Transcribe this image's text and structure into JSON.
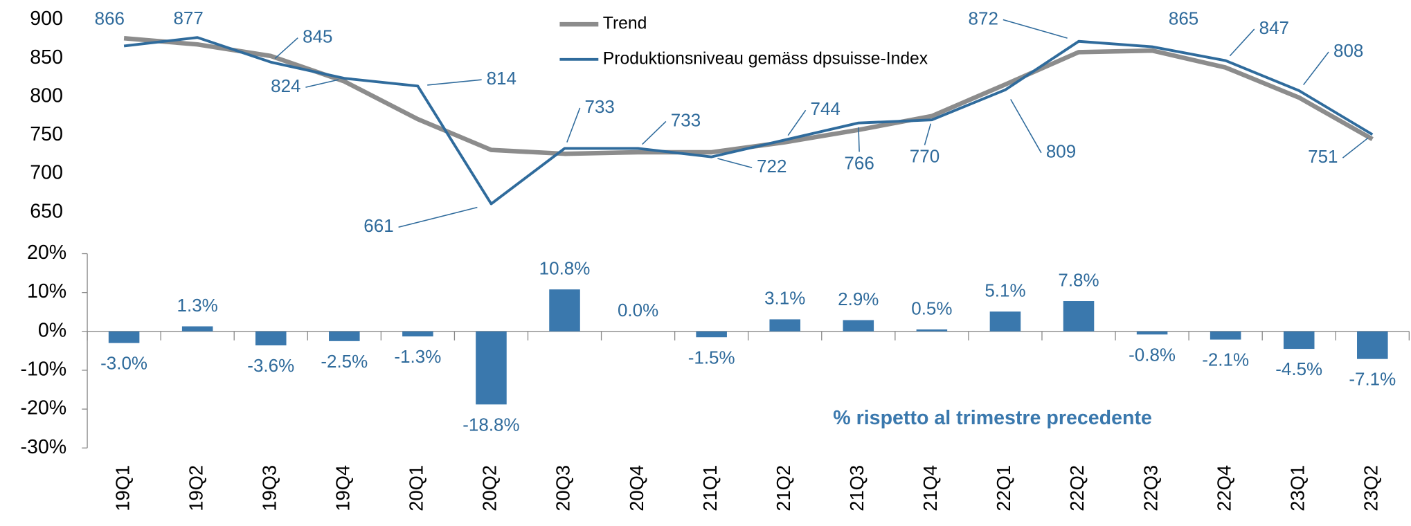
{
  "chart_data": [
    {
      "type": "line",
      "series": [
        {
          "name": "Trend",
          "color": "#8c8c8c",
          "values": [
            876,
            868,
            853,
            820,
            771,
            731,
            726,
            728,
            728,
            741,
            757,
            775,
            816,
            858,
            860,
            838,
            799,
            745
          ]
        },
        {
          "name": "Produktionsniveau gemäss dpsuisse-Index",
          "color": "#2f6b9c",
          "values": [
            866,
            877,
            845,
            824,
            814,
            661,
            733,
            733,
            722,
            744,
            766,
            770,
            809,
            872,
            865,
            847,
            808,
            751
          ],
          "data_labels": true
        }
      ],
      "ylim": [
        620,
        900
      ],
      "yticks": [
        650,
        700,
        750,
        800,
        850,
        900
      ]
    },
    {
      "type": "bar",
      "annotation": "% rispetto al trimestre precedente",
      "categories": [
        "19Q1",
        "19Q2",
        "19Q3",
        "19Q4",
        "20Q1",
        "20Q2",
        "20Q3",
        "20Q4",
        "21Q1",
        "21Q2",
        "21Q3",
        "21Q4",
        "22Q1",
        "22Q2",
        "22Q3",
        "22Q4",
        "23Q1",
        "23Q2"
      ],
      "values": [
        -3.0,
        1.3,
        -3.6,
        -2.5,
        -1.3,
        -18.8,
        10.8,
        0.0,
        -1.5,
        3.1,
        2.9,
        0.5,
        5.1,
        7.8,
        -0.8,
        -2.1,
        -4.5,
        -7.1
      ],
      "value_labels": [
        "-3.0%",
        "1.3%",
        "-3.6%",
        "-2.5%",
        "-1.3%",
        "-18.8%",
        "10.8%",
        "0.0%",
        "-1.5%",
        "3.1%",
        "2.9%",
        "0.5%",
        "5.1%",
        "7.8%",
        "-0.8%",
        "-2.1%",
        "-4.5%",
        "-7.1%"
      ],
      "color": "#3a78ad",
      "ylim": [
        -30,
        20
      ],
      "yticks": [
        {
          "value": -30,
          "label": "-30%"
        },
        {
          "value": -20,
          "label": "-20%"
        },
        {
          "value": -10,
          "label": "-10%"
        },
        {
          "value": 0,
          "label": "0%"
        },
        {
          "value": 10,
          "label": "10%"
        },
        {
          "value": 20,
          "label": "20%"
        }
      ]
    }
  ]
}
